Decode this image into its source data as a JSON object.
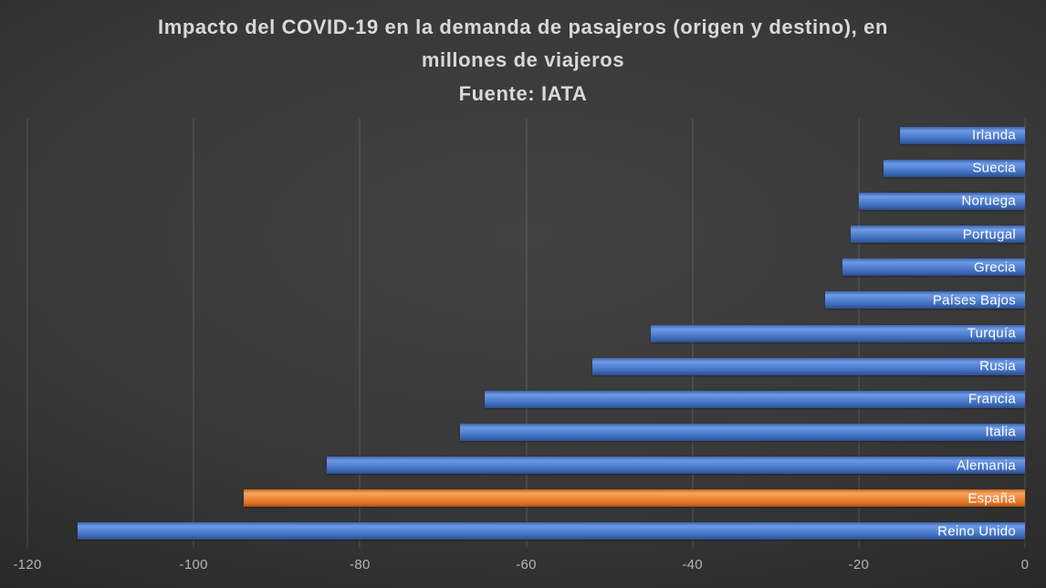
{
  "title": {
    "text": "Impacto del COVID-19 en la demanda de pasajeros (origen y destino), en millones de viajeros",
    "source": "Fuente: IATA"
  },
  "chart_data": {
    "type": "bar",
    "orientation": "horizontal",
    "categories": [
      "Irlanda",
      "Suecia",
      "Noruega",
      "Portugal",
      "Grecia",
      "Países Bajos",
      "Turquía",
      "Rusia",
      "Francia",
      "Italia",
      "Alemania",
      "España",
      "Reino Unido"
    ],
    "values": [
      -15,
      -17,
      -20,
      -21,
      -22,
      -24,
      -45,
      -52,
      -65,
      -68,
      -84,
      -94,
      -114
    ],
    "xlim": [
      -120,
      0
    ],
    "x_ticks": [
      -120,
      -100,
      -80,
      -60,
      -40,
      -20,
      0
    ],
    "bar_color": "#4472C4",
    "highlight_category": "España",
    "highlight_color": "#ED7D31",
    "grid": true,
    "label_color": "#FFFFFF",
    "background": "dark-radial-gray",
    "legend": "none"
  }
}
